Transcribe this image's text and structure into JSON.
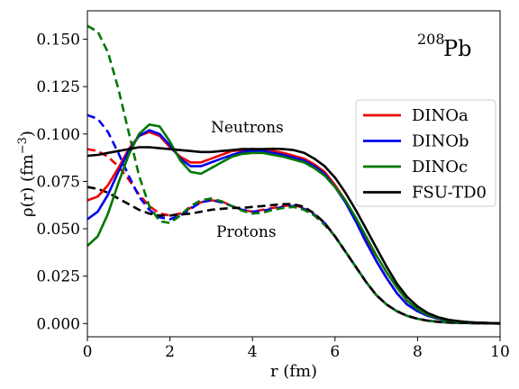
{
  "chart_data": {
    "type": "line",
    "xlabel": "r (fm)",
    "ylabel": "ρ(r) (fm",
    "ylabel_exp": "−3",
    "ylabel_close": ")",
    "xlim": [
      0,
      10
    ],
    "ylim": [
      -0.007,
      0.165
    ],
    "x_ticks": [
      0,
      2,
      4,
      6,
      8,
      10
    ],
    "x_tick_labels": [
      "0",
      "2",
      "4",
      "6",
      "8",
      "10"
    ],
    "y_ticks": [
      0.0,
      0.025,
      0.05,
      0.075,
      0.1,
      0.125,
      0.15
    ],
    "y_tick_labels": [
      "0.000",
      "0.025",
      "0.050",
      "0.075",
      "0.100",
      "0.125",
      "0.150"
    ],
    "grid": false,
    "legend_position": "right",
    "annotations": {
      "neutrons": "Neutrons",
      "protons": "Protons",
      "nucleus_mass": "208",
      "nucleus_symbol": "Pb"
    },
    "colors": {
      "DINOa": "#ee0000",
      "DINOb": "#0000ee",
      "DINOc": "#007700",
      "FSU-TD0": "#000000"
    },
    "x": [
      0,
      0.25,
      0.5,
      0.75,
      1.0,
      1.25,
      1.5,
      1.75,
      2.0,
      2.25,
      2.5,
      2.75,
      3.0,
      3.25,
      3.5,
      3.75,
      4.0,
      4.25,
      4.5,
      4.75,
      5.0,
      5.25,
      5.5,
      5.75,
      6.0,
      6.25,
      6.5,
      6.75,
      7.0,
      7.25,
      7.5,
      7.75,
      8.0,
      8.25,
      8.5,
      8.75,
      9.0,
      9.25,
      9.5,
      9.75,
      10.0
    ],
    "series": [
      {
        "name": "DINOa",
        "kind": "neutron",
        "style": "solid",
        "values": [
          0.065,
          0.067,
          0.073,
          0.082,
          0.092,
          0.099,
          0.101,
          0.099,
          0.093,
          0.088,
          0.085,
          0.085,
          0.087,
          0.089,
          0.091,
          0.0915,
          0.092,
          0.0915,
          0.091,
          0.09,
          0.0885,
          0.087,
          0.084,
          0.08,
          0.073,
          0.065,
          0.055,
          0.044,
          0.033,
          0.024,
          0.016,
          0.01,
          0.0065,
          0.004,
          0.0025,
          0.0015,
          0.001,
          0.0006,
          0.0004,
          0.0002,
          0.0001
        ]
      },
      {
        "name": "DINOb",
        "kind": "neutron",
        "style": "solid",
        "values": [
          0.055,
          0.059,
          0.068,
          0.08,
          0.091,
          0.099,
          0.102,
          0.1,
          0.094,
          0.087,
          0.083,
          0.083,
          0.085,
          0.087,
          0.089,
          0.0905,
          0.091,
          0.091,
          0.09,
          0.089,
          0.0875,
          0.086,
          0.083,
          0.079,
          0.072,
          0.064,
          0.054,
          0.043,
          0.033,
          0.024,
          0.016,
          0.01,
          0.0065,
          0.004,
          0.0025,
          0.0015,
          0.001,
          0.0006,
          0.0004,
          0.0002,
          0.0001
        ]
      },
      {
        "name": "DINOc",
        "kind": "neutron",
        "style": "solid",
        "values": [
          0.041,
          0.046,
          0.058,
          0.074,
          0.089,
          0.1,
          0.105,
          0.104,
          0.096,
          0.086,
          0.08,
          0.079,
          0.082,
          0.085,
          0.088,
          0.0895,
          0.09,
          0.09,
          0.089,
          0.088,
          0.0865,
          0.085,
          0.082,
          0.078,
          0.072,
          0.065,
          0.056,
          0.046,
          0.036,
          0.027,
          0.019,
          0.012,
          0.0075,
          0.0045,
          0.0028,
          0.0016,
          0.001,
          0.0006,
          0.0004,
          0.0002,
          0.0001
        ]
      },
      {
        "name": "FSU-TD0",
        "kind": "neutron",
        "style": "solid",
        "values": [
          0.0885,
          0.089,
          0.09,
          0.091,
          0.092,
          0.093,
          0.093,
          0.0925,
          0.092,
          0.0915,
          0.091,
          0.0905,
          0.0905,
          0.091,
          0.0915,
          0.092,
          0.092,
          0.092,
          0.0922,
          0.092,
          0.0915,
          0.09,
          0.087,
          0.083,
          0.077,
          0.069,
          0.06,
          0.05,
          0.04,
          0.03,
          0.021,
          0.014,
          0.009,
          0.0055,
          0.0033,
          0.002,
          0.0012,
          0.0007,
          0.0004,
          0.0002,
          0.0001
        ]
      },
      {
        "name": "DINOa",
        "kind": "proton",
        "style": "dashed",
        "values": [
          0.092,
          0.091,
          0.088,
          0.083,
          0.076,
          0.068,
          0.062,
          0.058,
          0.057,
          0.058,
          0.061,
          0.064,
          0.065,
          0.0645,
          0.062,
          0.06,
          0.059,
          0.06,
          0.061,
          0.062,
          0.0625,
          0.061,
          0.058,
          0.053,
          0.046,
          0.038,
          0.03,
          0.022,
          0.015,
          0.01,
          0.0065,
          0.004,
          0.0025,
          0.0015,
          0.0009,
          0.0005,
          0.0003,
          0.0002,
          0.0001,
          5e-05,
          0.0
        ]
      },
      {
        "name": "DINOb",
        "kind": "proton",
        "style": "dashed",
        "values": [
          0.11,
          0.108,
          0.101,
          0.09,
          0.078,
          0.067,
          0.06,
          0.056,
          0.055,
          0.057,
          0.0605,
          0.064,
          0.065,
          0.064,
          0.062,
          0.06,
          0.059,
          0.0595,
          0.0605,
          0.0615,
          0.062,
          0.0605,
          0.0575,
          0.053,
          0.046,
          0.038,
          0.03,
          0.022,
          0.015,
          0.01,
          0.0065,
          0.004,
          0.0025,
          0.0015,
          0.0009,
          0.0005,
          0.0003,
          0.0002,
          0.0001,
          5e-05,
          0.0
        ]
      },
      {
        "name": "DINOc",
        "kind": "proton",
        "style": "dashed",
        "values": [
          0.157,
          0.154,
          0.143,
          0.124,
          0.101,
          0.078,
          0.062,
          0.054,
          0.053,
          0.057,
          0.062,
          0.065,
          0.066,
          0.0645,
          0.062,
          0.0595,
          0.058,
          0.0585,
          0.06,
          0.061,
          0.0615,
          0.06,
          0.057,
          0.052,
          0.046,
          0.038,
          0.03,
          0.022,
          0.015,
          0.01,
          0.0065,
          0.004,
          0.0025,
          0.0015,
          0.0009,
          0.0005,
          0.0003,
          0.0002,
          0.0001,
          5e-05,
          0.0
        ]
      },
      {
        "name": "FSU-TD0",
        "kind": "proton",
        "style": "dashed",
        "values": [
          0.072,
          0.071,
          0.069,
          0.066,
          0.063,
          0.06,
          0.058,
          0.057,
          0.057,
          0.0575,
          0.058,
          0.059,
          0.06,
          0.0605,
          0.061,
          0.061,
          0.0615,
          0.062,
          0.0625,
          0.063,
          0.063,
          0.0615,
          0.058,
          0.053,
          0.046,
          0.038,
          0.03,
          0.022,
          0.015,
          0.01,
          0.0065,
          0.004,
          0.0025,
          0.0015,
          0.0009,
          0.0005,
          0.0003,
          0.0002,
          0.0001,
          5e-05,
          0.0
        ]
      }
    ],
    "legend": [
      "DINOa",
      "DINOb",
      "DINOc",
      "FSU-TD0"
    ]
  }
}
